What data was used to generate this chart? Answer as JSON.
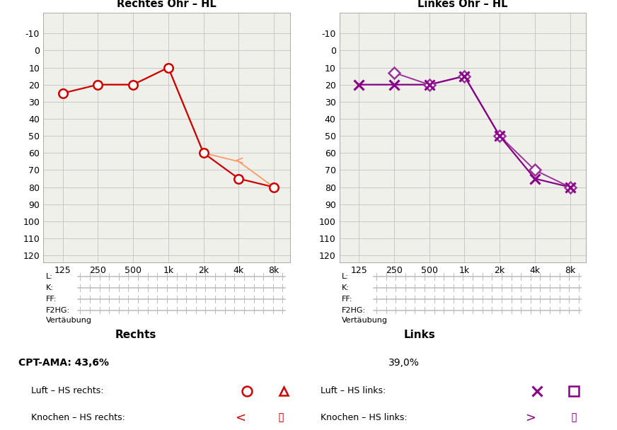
{
  "right_air_x": [
    125,
    250,
    500,
    1000,
    2000,
    4000,
    8000
  ],
  "right_air_y": [
    25,
    20,
    20,
    10,
    60,
    75,
    80
  ],
  "right_bone_x": [
    250,
    500,
    1000,
    2000,
    4000,
    8000
  ],
  "right_bone_y": [
    20,
    20,
    10,
    60,
    65,
    80
  ],
  "left_air_x": [
    125,
    250,
    500,
    1000,
    2000,
    4000,
    8000
  ],
  "left_air_y": [
    20,
    20,
    20,
    15,
    50,
    75,
    80
  ],
  "left_bone_x": [
    250,
    500,
    1000,
    2000,
    4000,
    8000
  ],
  "left_bone_y": [
    13,
    20,
    15,
    50,
    70,
    80
  ],
  "right_color": "#cc0000",
  "right_bone_color": "#ff9966",
  "left_air_color": "#880088",
  "left_bone_color": "#993399",
  "bg_color": "#f0f0eb",
  "grid_color": "#c8c8c8",
  "title_right": "Rechtes Ohr – HL",
  "title_left": "Linkes Ohr – HL",
  "xtick_labels": [
    "125",
    "250",
    "500",
    "1k",
    "2k",
    "4k",
    "8k"
  ],
  "xtick_values": [
    125,
    250,
    500,
    1000,
    2000,
    4000,
    8000
  ],
  "ytick_values": [
    -10,
    0,
    10,
    20,
    30,
    40,
    50,
    60,
    70,
    80,
    90,
    100,
    110,
    120
  ],
  "ylim_min": -10,
  "ylim_max": 120,
  "label_rechts": "Rechts",
  "label_links": "Links",
  "cpt_ama_text": "CPT-AMA: 43,6%",
  "links_pct": "39,0%",
  "luft_hs_rechts": "Luft – HS rechts:",
  "knochen_hs_rechts": "Knochen – HS rechts:",
  "luft_hs_links": "Luft – HS links:",
  "knochen_hs_links": "Knochen – HS links:",
  "label_L": "L:",
  "label_K": "K:",
  "label_FF": "FF:",
  "label_F2HG": "F2HG:",
  "label_Vertaebung": "Vertäubung"
}
